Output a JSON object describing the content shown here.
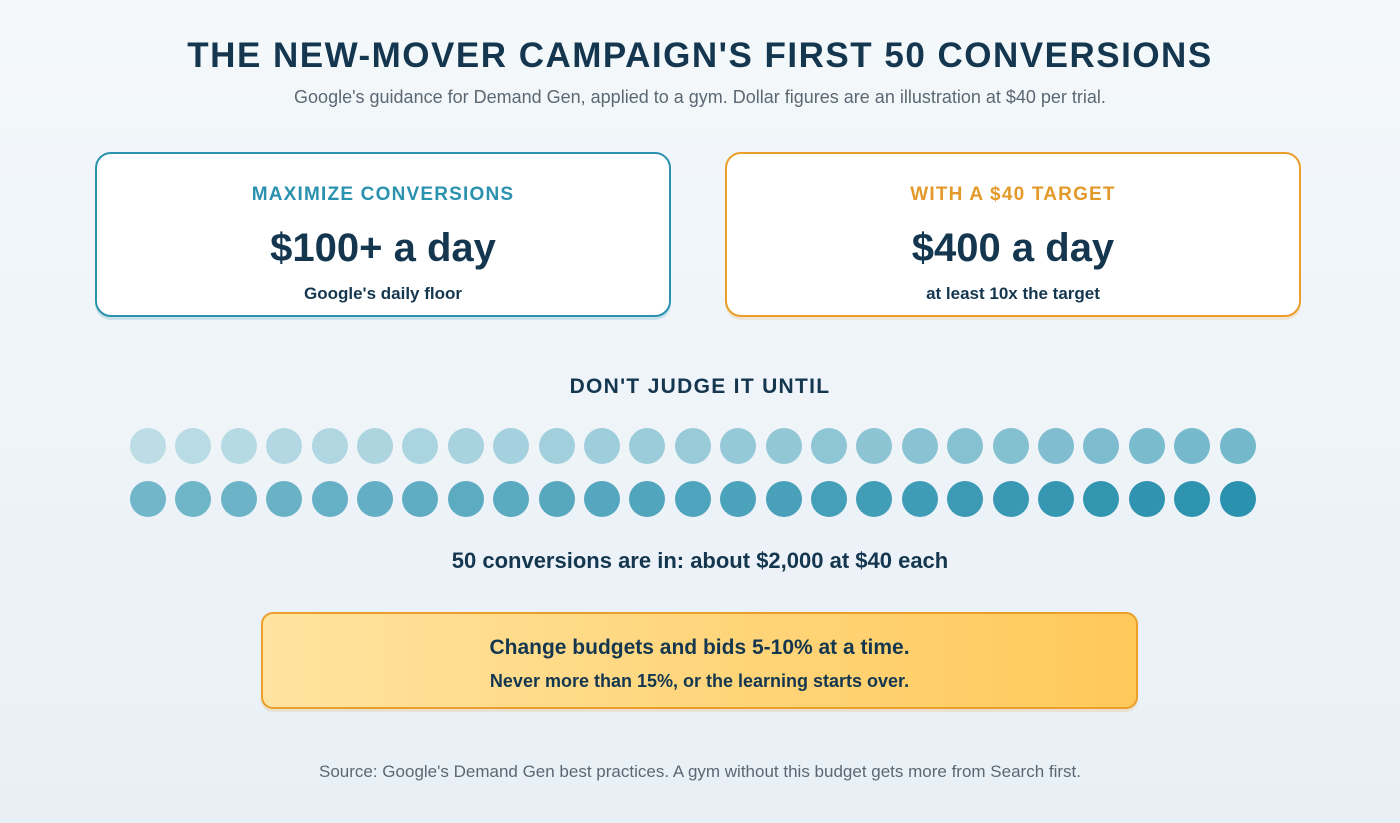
{
  "header": {
    "title": "THE NEW-MOVER CAMPAIGN'S FIRST 50 CONVERSIONS",
    "subtitle": "Google's guidance for Demand Gen, applied to a gym. Dollar figures are an illustration at $40 per trial."
  },
  "cards": [
    {
      "kicker": "MAXIMIZE CONVERSIONS",
      "value": "$100+ a day",
      "note": "Google's daily floor",
      "color": "#2a91ae"
    },
    {
      "kicker": "WITH A $40 TARGET",
      "value": "$400 a day",
      "note": "at least 10x the target",
      "color": "#eb9e2a"
    }
  ],
  "conversions": {
    "heading": "DON'T JUDGE IT UNTIL",
    "count": 50,
    "color_light": "#bcdde6",
    "color_dark": "#2a91ae",
    "caption": "50 conversions are in: about $2,000 at $40 each"
  },
  "callout": {
    "main": "Change budgets and bids 5-10% at a time.",
    "sub": "Never more than 15%, or the learning starts over."
  },
  "footer": {
    "source": "Source: Google's Demand Gen best practices. A gym without this budget gets more from Search first."
  }
}
